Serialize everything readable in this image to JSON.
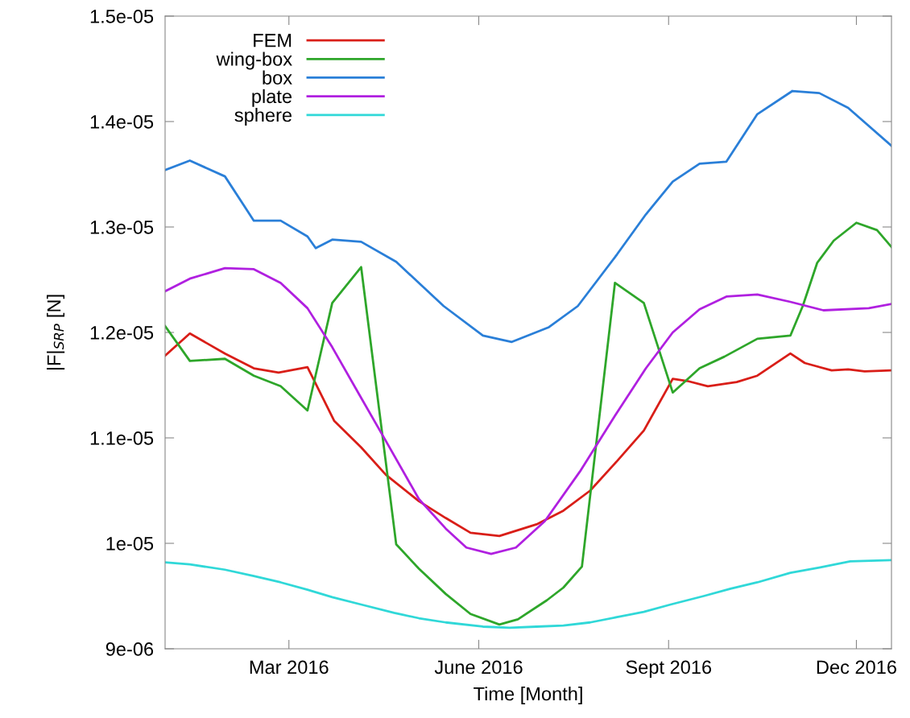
{
  "chart_data": {
    "type": "line",
    "xlabel": "Time [Month]",
    "ylabel": "|F|$_{SRP}$ [N]",
    "xlim": [
      "2016-01-01",
      "2016-12-18"
    ],
    "xticks": [
      {
        "value": "2016-03-01",
        "label": "Mar 2016"
      },
      {
        "value": "2016-06-01",
        "label": "June 2016"
      },
      {
        "value": "2016-09-01",
        "label": "Sept 2016"
      },
      {
        "value": "2016-12-01",
        "label": "Dec 2016"
      }
    ],
    "ylim": [
      9e-06,
      1.5e-05
    ],
    "yticks": [
      {
        "value": 9e-06,
        "label": "9e-06"
      },
      {
        "value": 1e-05,
        "label": "1e-05"
      },
      {
        "value": 1.1e-05,
        "label": "1.1e-05"
      },
      {
        "value": 1.2e-05,
        "label": "1.2e-05"
      },
      {
        "value": 1.3e-05,
        "label": "1.3e-05"
      },
      {
        "value": 1.4e-05,
        "label": "1.4e-05"
      },
      {
        "value": 1.5e-05,
        "label": "1.5e-05"
      }
    ],
    "grid": false,
    "legend": "top left",
    "marker": "none",
    "line_style": "solid",
    "series": [
      {
        "name": "FEM",
        "color": "#d91e18",
        "x": [
          "2016-01-01",
          "2016-01-13",
          "2016-01-30",
          "2016-02-13",
          "2016-02-25",
          "2016-03-10",
          "2016-03-23",
          "2016-04-05",
          "2016-04-17",
          "2016-05-03",
          "2016-05-16",
          "2016-05-28",
          "2016-06-11",
          "2016-06-29",
          "2016-07-12",
          "2016-07-25",
          "2016-08-07",
          "2016-08-20",
          "2016-09-03",
          "2016-09-10",
          "2016-09-20",
          "2016-10-04",
          "2016-10-14",
          "2016-10-30",
          "2016-11-06",
          "2016-11-19",
          "2016-11-27",
          "2016-12-05",
          "2016-12-18"
        ],
        "values": [
          1.178e-05,
          1.199e-05,
          1.18e-05,
          1.166e-05,
          1.162e-05,
          1.167e-05,
          1.116e-05,
          1.091e-05,
          1.065e-05,
          1.04e-05,
          1.024e-05,
          1.01e-05,
          1.007e-05,
          1.018e-05,
          1.031e-05,
          1.05e-05,
          1.078e-05,
          1.107e-05,
          1.156e-05,
          1.154e-05,
          1.149e-05,
          1.153e-05,
          1.159e-05,
          1.18e-05,
          1.171e-05,
          1.164e-05,
          1.165e-05,
          1.163e-05,
          1.164e-05
        ]
      },
      {
        "name": "wing-box",
        "color": "#2ea62a",
        "x": [
          "2016-01-01",
          "2016-01-13",
          "2016-01-30",
          "2016-02-13",
          "2016-02-26",
          "2016-03-10",
          "2016-03-22",
          "2016-04-05",
          "2016-04-22",
          "2016-05-03",
          "2016-05-16",
          "2016-05-28",
          "2016-06-11",
          "2016-06-20",
          "2016-07-04",
          "2016-07-12",
          "2016-07-21",
          "2016-08-06",
          "2016-08-20",
          "2016-09-03",
          "2016-09-16",
          "2016-09-28",
          "2016-10-14",
          "2016-10-30",
          "2016-11-05",
          "2016-11-12",
          "2016-11-20",
          "2016-12-01",
          "2016-12-11",
          "2016-12-18"
        ],
        "values": [
          1.206e-05,
          1.173e-05,
          1.175e-05,
          1.159e-05,
          1.149e-05,
          1.126e-05,
          1.228e-05,
          1.262e-05,
          9.99e-06,
          9.76e-06,
          9.52e-06,
          9.33e-06,
          9.23e-06,
          9.28e-06,
          9.46e-06,
          9.58e-06,
          9.78e-06,
          1.247e-05,
          1.228e-05,
          1.143e-05,
          1.166e-05,
          1.177e-05,
          1.194e-05,
          1.197e-05,
          1.225e-05,
          1.266e-05,
          1.287e-05,
          1.304e-05,
          1.297e-05,
          1.281e-05
        ]
      },
      {
        "name": "box",
        "color": "#2a7fd8",
        "x": [
          "2016-01-01",
          "2016-01-13",
          "2016-01-30",
          "2016-02-13",
          "2016-02-26",
          "2016-03-10",
          "2016-03-14",
          "2016-03-22",
          "2016-04-05",
          "2016-04-22",
          "2016-05-15",
          "2016-06-03",
          "2016-06-17",
          "2016-07-05",
          "2016-07-19",
          "2016-08-07",
          "2016-08-21",
          "2016-09-03",
          "2016-09-16",
          "2016-09-29",
          "2016-10-14",
          "2016-10-31",
          "2016-11-13",
          "2016-11-27",
          "2016-12-18"
        ],
        "values": [
          1.354e-05,
          1.363e-05,
          1.348e-05,
          1.306e-05,
          1.306e-05,
          1.291e-05,
          1.28e-05,
          1.288e-05,
          1.286e-05,
          1.267e-05,
          1.225e-05,
          1.197e-05,
          1.191e-05,
          1.205e-05,
          1.225e-05,
          1.274e-05,
          1.312e-05,
          1.343e-05,
          1.36e-05,
          1.362e-05,
          1.407e-05,
          1.429e-05,
          1.427e-05,
          1.413e-05,
          1.377e-05
        ]
      },
      {
        "name": "plate",
        "color": "#b020e0",
        "x": [
          "2016-01-01",
          "2016-01-13",
          "2016-01-30",
          "2016-02-13",
          "2016-02-26",
          "2016-03-10",
          "2016-03-22",
          "2016-04-05",
          "2016-04-17",
          "2016-05-03",
          "2016-05-16",
          "2016-05-26",
          "2016-06-07",
          "2016-06-19",
          "2016-07-03",
          "2016-07-20",
          "2016-08-06",
          "2016-08-21",
          "2016-09-03",
          "2016-09-16",
          "2016-09-29",
          "2016-10-14",
          "2016-10-30",
          "2016-11-15",
          "2016-12-07",
          "2016-12-18"
        ],
        "values": [
          1.239e-05,
          1.251e-05,
          1.261e-05,
          1.26e-05,
          1.247e-05,
          1.223e-05,
          1.186e-05,
          1.138e-05,
          1.097e-05,
          1.042e-05,
          1.014e-05,
          9.96e-06,
          9.9e-06,
          9.96e-06,
          1.021e-05,
          1.068e-05,
          1.121e-05,
          1.166e-05,
          1.2e-05,
          1.222e-05,
          1.234e-05,
          1.236e-05,
          1.229e-05,
          1.221e-05,
          1.223e-05,
          1.227e-05
        ]
      },
      {
        "name": "sphere",
        "color": "#30d8d8",
        "x": [
          "2016-01-01",
          "2016-01-13",
          "2016-01-30",
          "2016-02-13",
          "2016-02-26",
          "2016-03-10",
          "2016-03-22",
          "2016-04-05",
          "2016-04-21",
          "2016-05-03",
          "2016-05-16",
          "2016-06-03",
          "2016-06-16",
          "2016-06-29",
          "2016-07-12",
          "2016-07-25",
          "2016-08-07",
          "2016-08-20",
          "2016-09-02",
          "2016-09-18",
          "2016-10-01",
          "2016-10-14",
          "2016-10-30",
          "2016-11-13",
          "2016-11-28",
          "2016-12-18"
        ],
        "values": [
          9.82e-06,
          9.8e-06,
          9.75e-06,
          9.69e-06,
          9.63e-06,
          9.56e-06,
          9.49e-06,
          9.42e-06,
          9.34e-06,
          9.29e-06,
          9.25e-06,
          9.21e-06,
          9.2e-06,
          9.21e-06,
          9.22e-06,
          9.25e-06,
          9.3e-06,
          9.35e-06,
          9.42e-06,
          9.5e-06,
          9.57e-06,
          9.63e-06,
          9.72e-06,
          9.77e-06,
          9.83e-06,
          9.84e-06
        ]
      }
    ]
  }
}
